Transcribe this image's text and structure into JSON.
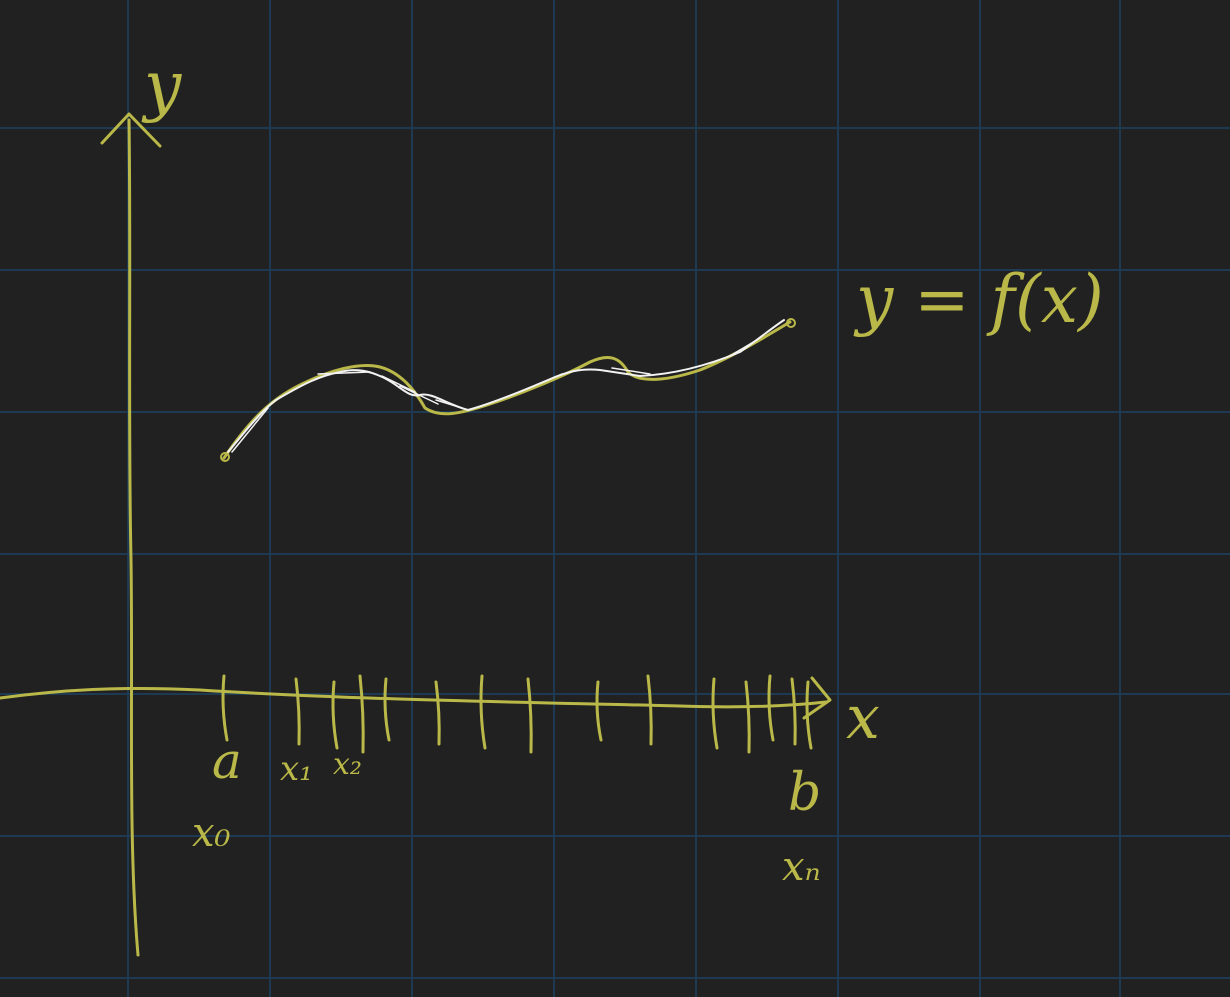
{
  "colors": {
    "background": "#212121",
    "grid": "#1d3a52",
    "ink": "#b9b848",
    "curve_trace": "#f2f2f2"
  },
  "labels": {
    "y_axis": "y",
    "x_axis": "x",
    "function": "y = f(x)",
    "a": "a",
    "b": "b",
    "x0": "x₀",
    "x1": "x₁",
    "x2": "x₂",
    "xn": "xₙ"
  },
  "grid": {
    "visible": true
  },
  "partition": {
    "tick_count": 15
  }
}
